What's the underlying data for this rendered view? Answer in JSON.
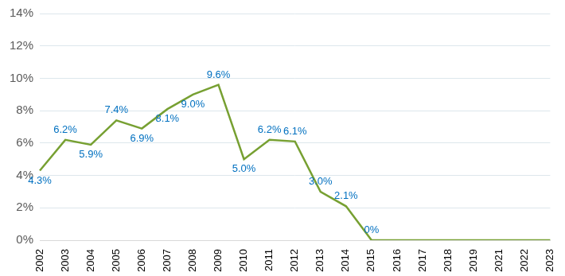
{
  "chart_data": {
    "type": "line",
    "categories": [
      "2002",
      "2003",
      "2004",
      "2005",
      "2006",
      "2007",
      "2008",
      "2009",
      "2010",
      "2011",
      "2012",
      "2013",
      "2014",
      "2015",
      "2016",
      "2017",
      "2018",
      "2019",
      "2021",
      "2022",
      "2023"
    ],
    "values": [
      4.3,
      6.2,
      5.9,
      7.4,
      6.9,
      8.1,
      9.0,
      9.6,
      5.0,
      6.2,
      6.1,
      3.0,
      2.1,
      0,
      0,
      0,
      0,
      0,
      0,
      0,
      0
    ],
    "value_labels": [
      "4.3%",
      "6.2%",
      "5.9%",
      "7.4%",
      "6.9%",
      "8.1%",
      "9.0%",
      "9.6%",
      "5.0%",
      "6.2%",
      "6.1%",
      "3.0%",
      "2.1%",
      "0%",
      null,
      null,
      null,
      null,
      null,
      null,
      null
    ],
    "data_labels": true,
    "color": "#77a032",
    "ylim": [
      0,
      14
    ],
    "yticks": [
      {
        "value": 0,
        "label": "0%"
      },
      {
        "value": 2,
        "label": "2%"
      },
      {
        "value": 4,
        "label": "4%"
      },
      {
        "value": 6,
        "label": "6%"
      },
      {
        "value": 8,
        "label": "8%"
      },
      {
        "value": 10,
        "label": "10%"
      },
      {
        "value": 12,
        "label": "12%"
      },
      {
        "value": 14,
        "label": "14%"
      }
    ],
    "grid": true
  }
}
